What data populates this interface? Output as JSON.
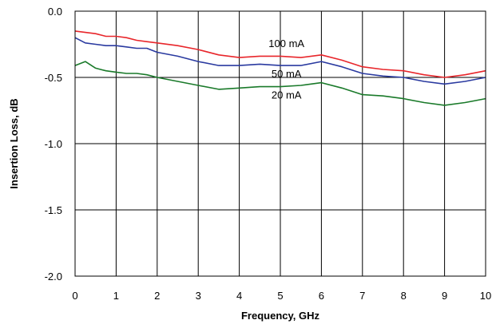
{
  "chart_data": {
    "type": "line",
    "xlabel": "Frequency, GHz",
    "ylabel": "Insertion Loss, dB",
    "xlim": [
      0,
      10
    ],
    "ylim": [
      -2.0,
      0.0
    ],
    "xticks": [
      0,
      1,
      2,
      3,
      4,
      5,
      6,
      7,
      8,
      9,
      10
    ],
    "xtick_labels": [
      "0",
      "1",
      "2",
      "3",
      "4",
      "5",
      "6",
      "7",
      "8",
      "9",
      "10"
    ],
    "yticks": [
      0.0,
      -0.5,
      -1.0,
      -1.5,
      -2.0
    ],
    "ytick_labels": [
      "0.0",
      "-0.5",
      "-1.0",
      "-1.5",
      "-2.0"
    ],
    "grid": true,
    "legend": "inline labels",
    "series": [
      {
        "name": "100 mA",
        "color": "#e8262b",
        "label_at": [
          5.15,
          -0.27
        ],
        "x": [
          0,
          0.25,
          0.5,
          0.75,
          1.0,
          1.25,
          1.5,
          1.75,
          2.0,
          2.5,
          3.0,
          3.5,
          4.0,
          4.5,
          5.0,
          5.5,
          6.0,
          6.5,
          7.0,
          7.5,
          8.0,
          8.5,
          9.0,
          9.5,
          10.0
        ],
        "values": [
          -0.15,
          -0.16,
          -0.17,
          -0.19,
          -0.19,
          -0.2,
          -0.22,
          -0.23,
          -0.24,
          -0.26,
          -0.29,
          -0.33,
          -0.35,
          -0.34,
          -0.34,
          -0.35,
          -0.33,
          -0.37,
          -0.42,
          -0.44,
          -0.45,
          -0.48,
          -0.5,
          -0.48,
          -0.45
        ]
      },
      {
        "name": "50 mA",
        "color": "#2a3aa0",
        "label_at": [
          5.15,
          -0.5
        ],
        "x": [
          0,
          0.25,
          0.5,
          0.75,
          1.0,
          1.25,
          1.5,
          1.75,
          2.0,
          2.5,
          3.0,
          3.5,
          4.0,
          4.5,
          5.0,
          5.5,
          6.0,
          6.5,
          7.0,
          7.5,
          8.0,
          8.5,
          9.0,
          9.5,
          10.0
        ],
        "values": [
          -0.2,
          -0.24,
          -0.25,
          -0.26,
          -0.26,
          -0.27,
          -0.28,
          -0.28,
          -0.31,
          -0.34,
          -0.38,
          -0.41,
          -0.41,
          -0.4,
          -0.41,
          -0.41,
          -0.38,
          -0.42,
          -0.47,
          -0.49,
          -0.5,
          -0.53,
          -0.55,
          -0.53,
          -0.5
        ]
      },
      {
        "name": "20 mA",
        "color": "#1a7a2a",
        "label_at": [
          5.15,
          -0.66
        ],
        "x": [
          0,
          0.25,
          0.5,
          0.75,
          1.0,
          1.25,
          1.5,
          1.75,
          2.0,
          2.5,
          3.0,
          3.5,
          4.0,
          4.5,
          5.0,
          5.5,
          6.0,
          6.5,
          7.0,
          7.5,
          8.0,
          8.5,
          9.0,
          9.5,
          10.0
        ],
        "values": [
          -0.41,
          -0.38,
          -0.43,
          -0.45,
          -0.46,
          -0.47,
          -0.47,
          -0.48,
          -0.5,
          -0.53,
          -0.56,
          -0.59,
          -0.58,
          -0.57,
          -0.57,
          -0.56,
          -0.54,
          -0.58,
          -0.63,
          -0.64,
          -0.66,
          -0.69,
          -0.71,
          -0.69,
          -0.66
        ]
      }
    ]
  }
}
